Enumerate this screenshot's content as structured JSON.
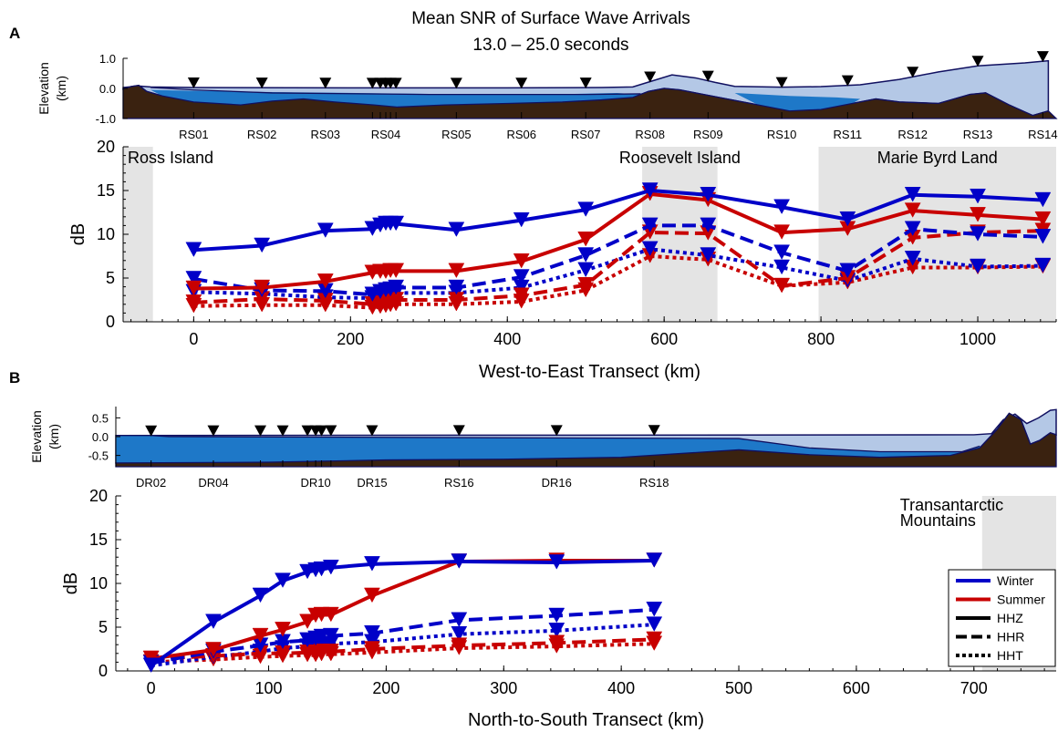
{
  "figure": {
    "title": "Mean SNR of Surface Wave Arrivals",
    "subtitle": "13.0 – 25.0 seconds",
    "panel_labels": [
      "A",
      "B"
    ]
  },
  "colors": {
    "winter": "#0000c8",
    "summer": "#c80000",
    "ice": "#b4c8e6",
    "water": "#1e78c8",
    "rock": "#3a2210",
    "region": "#e4e4e4",
    "station_marker": "#000000"
  },
  "legend": {
    "placement": "lower-right of panel B",
    "entries": [
      {
        "label": "Winter",
        "style": "solid",
        "color": "#0000c8"
      },
      {
        "label": "Summer",
        "style": "solid",
        "color": "#c80000"
      },
      {
        "label": "HHZ",
        "style": "solid",
        "color": "#000000"
      },
      {
        "label": "HHR",
        "style": "dashed",
        "color": "#000000"
      },
      {
        "label": "HHT",
        "style": "dotted",
        "color": "#000000"
      }
    ]
  },
  "chart_data": [
    {
      "panel": "A",
      "type": "line",
      "marker": "down-triangle",
      "xlabel": "West-to-East Transect (km)",
      "ylabel": "dB",
      "xlim": [
        -90,
        1100
      ],
      "ylim": [
        0,
        20
      ],
      "xticks": [
        0,
        200,
        400,
        600,
        800,
        1000
      ],
      "yticks": [
        0,
        5,
        10,
        15,
        20
      ],
      "grid": false,
      "regions": [
        {
          "label": "Ross Island",
          "x0": -90,
          "x1": -52
        },
        {
          "label": "Roosevelt Island",
          "x0": 572,
          "x1": 668
        },
        {
          "label": "Marie Byrd Land",
          "x0": 797,
          "x1": 1100
        }
      ],
      "x": [
        0,
        87,
        168,
        228,
        238,
        245,
        251,
        258,
        335,
        418,
        500,
        582,
        656,
        750,
        834,
        917,
        1000,
        1083
      ],
      "series": [
        {
          "season": "Winter",
          "component": "HHZ",
          "values": [
            8.2,
            8.7,
            10.4,
            10.6,
            11.0,
            11.2,
            11.2,
            11.2,
            10.5,
            11.6,
            12.8,
            15.0,
            14.5,
            13.1,
            11.7,
            14.5,
            14.3,
            13.9
          ]
        },
        {
          "season": "Summer",
          "component": "HHZ",
          "values": [
            3.8,
            3.9,
            4.6,
            5.6,
            5.7,
            5.7,
            5.8,
            5.8,
            5.8,
            6.9,
            9.4,
            14.6,
            13.9,
            10.2,
            10.6,
            12.7,
            12.2,
            11.7
          ]
        },
        {
          "season": "Winter",
          "component": "HHR",
          "values": [
            4.9,
            3.6,
            3.5,
            3.1,
            3.4,
            3.6,
            3.7,
            3.9,
            3.9,
            5.1,
            7.6,
            11.0,
            11.0,
            7.9,
            5.8,
            10.6,
            10.0,
            9.7
          ]
        },
        {
          "season": "Summer",
          "component": "HHR",
          "values": [
            2.2,
            2.6,
            2.4,
            2.0,
            2.1,
            2.2,
            2.3,
            2.5,
            2.5,
            3.0,
            4.2,
            10.2,
            10.1,
            4.1,
            5.0,
            9.6,
            10.2,
            10.4
          ]
        },
        {
          "season": "Winter",
          "component": "HHT",
          "values": [
            3.4,
            3.2,
            2.8,
            2.7,
            2.9,
            3.0,
            3.2,
            3.3,
            3.3,
            3.9,
            5.9,
            8.3,
            7.6,
            6.2,
            4.7,
            7.2,
            6.3,
            6.4
          ]
        },
        {
          "season": "Summer",
          "component": "HHT",
          "values": [
            1.8,
            1.9,
            1.9,
            1.6,
            1.7,
            1.8,
            1.9,
            2.0,
            2.0,
            2.3,
            3.6,
            7.5,
            7.1,
            4.1,
            4.5,
            6.2,
            6.2,
            6.3
          ]
        }
      ],
      "elevation_profile": {
        "ylabel": "Elevation\n(km)",
        "ylim": [
          -1.0,
          1.0
        ],
        "yticks": [
          1.0,
          0.0,
          -1.0
        ],
        "ytick_labels": [
          "1.0",
          "0.0",
          "-1.0"
        ],
        "stations": [
          {
            "name": "RS01",
            "x": 0
          },
          {
            "name": "RS02",
            "x": 87
          },
          {
            "name": "RS03",
            "x": 168
          },
          {
            "name": "RS04",
            "x": 245
          },
          {
            "name": "RS05",
            "x": 335
          },
          {
            "name": "RS06",
            "x": 418
          },
          {
            "name": "RS07",
            "x": 500
          },
          {
            "name": "RS08",
            "x": 582
          },
          {
            "name": "RS09",
            "x": 656
          },
          {
            "name": "RS10",
            "x": 750
          },
          {
            "name": "RS11",
            "x": 834
          },
          {
            "name": "RS12",
            "x": 917
          },
          {
            "name": "RS13",
            "x": 1000
          },
          {
            "name": "RS14",
            "x": 1083
          }
        ]
      }
    },
    {
      "panel": "B",
      "type": "line",
      "marker": "down-triangle",
      "xlabel": "North-to-South Transect (km)",
      "ylabel": "dB",
      "xlim": [
        -30,
        770
      ],
      "ylim": [
        0,
        20
      ],
      "xticks": [
        0,
        100,
        200,
        300,
        400,
        500,
        600,
        700
      ],
      "yticks": [
        0,
        5,
        10,
        15,
        20
      ],
      "grid": false,
      "regions": [
        {
          "label": "Transantarctic\nMountains",
          "x0": 707,
          "x1": 770
        }
      ],
      "x": [
        0,
        53,
        93,
        112,
        133,
        140,
        145,
        153,
        188,
        262,
        345,
        428
      ],
      "series": [
        {
          "season": "Winter",
          "component": "HHZ",
          "values": [
            0.6,
            5.6,
            8.6,
            10.3,
            11.3,
            11.5,
            11.6,
            11.8,
            12.2,
            12.5,
            12.4,
            12.6
          ]
        },
        {
          "season": "Summer",
          "component": "HHZ",
          "values": [
            1.4,
            2.4,
            4.0,
            4.7,
            5.6,
            6.3,
            6.4,
            6.4,
            8.6,
            12.5,
            12.6,
            12.6
          ]
        },
        {
          "season": "Winter",
          "component": "HHR",
          "values": [
            0.9,
            2.2,
            2.9,
            3.3,
            3.5,
            3.7,
            3.9,
            4.0,
            4.3,
            5.8,
            6.3,
            7.0
          ]
        },
        {
          "season": "Summer",
          "component": "HHR",
          "values": [
            1.4,
            1.7,
            2.0,
            2.0,
            2.1,
            2.1,
            2.2,
            2.2,
            2.5,
            2.9,
            3.2,
            3.6
          ]
        },
        {
          "season": "Winter",
          "component": "HHT",
          "values": [
            0.6,
            1.6,
            2.2,
            2.6,
            2.8,
            2.9,
            3.0,
            3.1,
            3.3,
            4.2,
            4.6,
            5.3
          ]
        },
        {
          "season": "Summer",
          "component": "HHT",
          "values": [
            1.0,
            1.3,
            1.6,
            1.7,
            1.8,
            1.8,
            1.9,
            1.9,
            2.1,
            2.6,
            2.8,
            3.1
          ]
        }
      ],
      "elevation_profile": {
        "ylabel": "Elevation\n(km)",
        "ylim": [
          -0.8,
          0.8
        ],
        "yticks": [
          0.5,
          0.0,
          -0.5
        ],
        "ytick_labels": [
          "0.5",
          "0.0",
          "-0.5"
        ],
        "stations": [
          {
            "name": "DR02",
            "x": 0
          },
          {
            "name": "DR04",
            "x": 53
          },
          {
            "name": "DR10",
            "x": 140
          },
          {
            "name": "DR15",
            "x": 188
          },
          {
            "name": "RS16",
            "x": 262
          },
          {
            "name": "DR16",
            "x": 345
          },
          {
            "name": "RS18",
            "x": 428
          }
        ]
      }
    }
  ]
}
